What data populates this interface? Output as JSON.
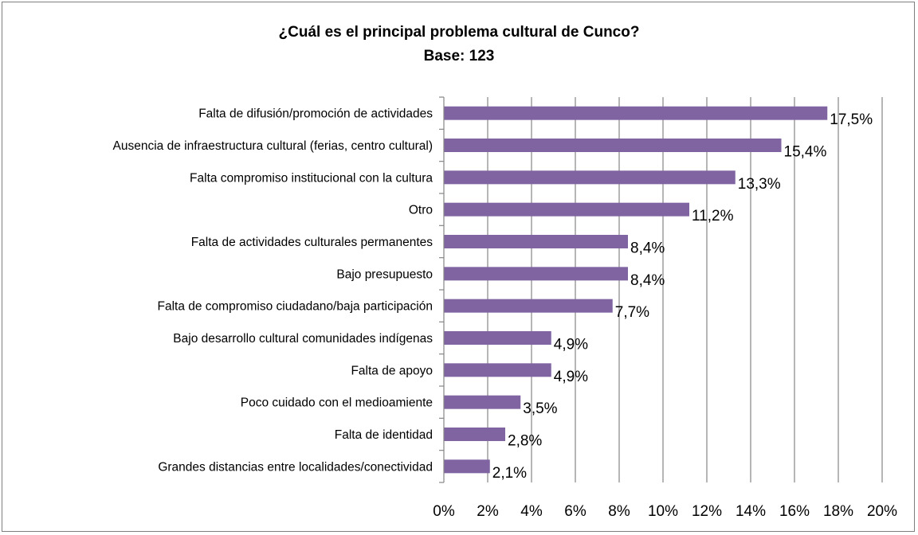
{
  "chart_data": {
    "type": "bar",
    "orientation": "horizontal",
    "title": "¿Cuál es el principal problema cultural de Cunco?",
    "subtitle": "Base: 123",
    "categories": [
      "Falta de difusión/promoción de actividades",
      "Ausencia de infraestructura cultural (ferias, centro cultural)",
      "Falta compromiso institucional con la cultura",
      "Otro",
      "Falta de actividades culturales permanentes",
      "Bajo presupuesto",
      "Falta de compromiso ciudadano/baja participación",
      "Bajo desarrollo cultural comunidades indígenas",
      "Falta de apoyo",
      "Poco cuidado con el medioamiente",
      "Falta de identidad",
      "Grandes distancias entre localidades/conectividad"
    ],
    "values": [
      17.5,
      15.4,
      13.3,
      11.2,
      8.4,
      8.4,
      7.7,
      4.9,
      4.9,
      3.5,
      2.8,
      2.1
    ],
    "data_labels": [
      "17,5%",
      "15,4%",
      "13,3%",
      "11,2%",
      "8,4%",
      "8,4%",
      "7,7%",
      "4,9%",
      "4,9%",
      "3,5%",
      "2,8%",
      "2,1%"
    ],
    "x_ticks": [
      "0%",
      "2%",
      "4%",
      "6%",
      "8%",
      "10%",
      "12%",
      "14%",
      "16%",
      "18%",
      "20%"
    ],
    "xlim": [
      0,
      20
    ],
    "grid": true,
    "legend": "none",
    "bar_color": "#8064a2",
    "grid_color": "#868686"
  }
}
